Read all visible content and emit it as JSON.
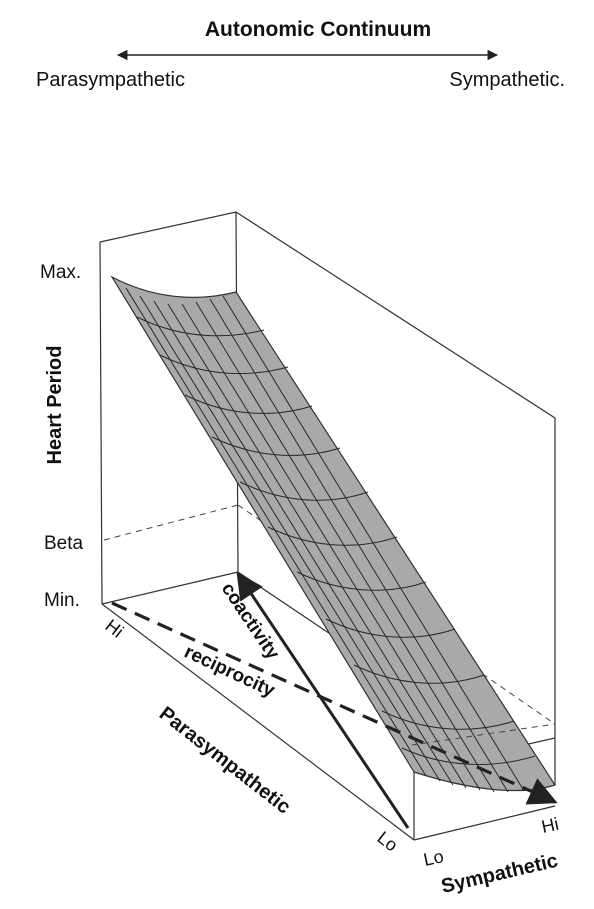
{
  "continuum": {
    "title": "Autonomic Continuum",
    "left_label": "Parasympathetic",
    "right_label": "Sympathetic."
  },
  "axes": {
    "z_title": "Heart Period",
    "z_ticks": {
      "max": "Max.",
      "beta": "Beta",
      "min": "Min."
    },
    "para_title": "Parasympathetic",
    "para_hi": "Hi",
    "para_lo": "Lo",
    "symp_title": "Sympathetic",
    "symp_lo": "Lo",
    "symp_hi": "Hi"
  },
  "annotations": {
    "coactivity": "coactivity",
    "reciprocity": "reciprocity"
  },
  "colors": {
    "surface": "#a9a9a9",
    "lines": "#333333",
    "text": "#111111"
  }
}
